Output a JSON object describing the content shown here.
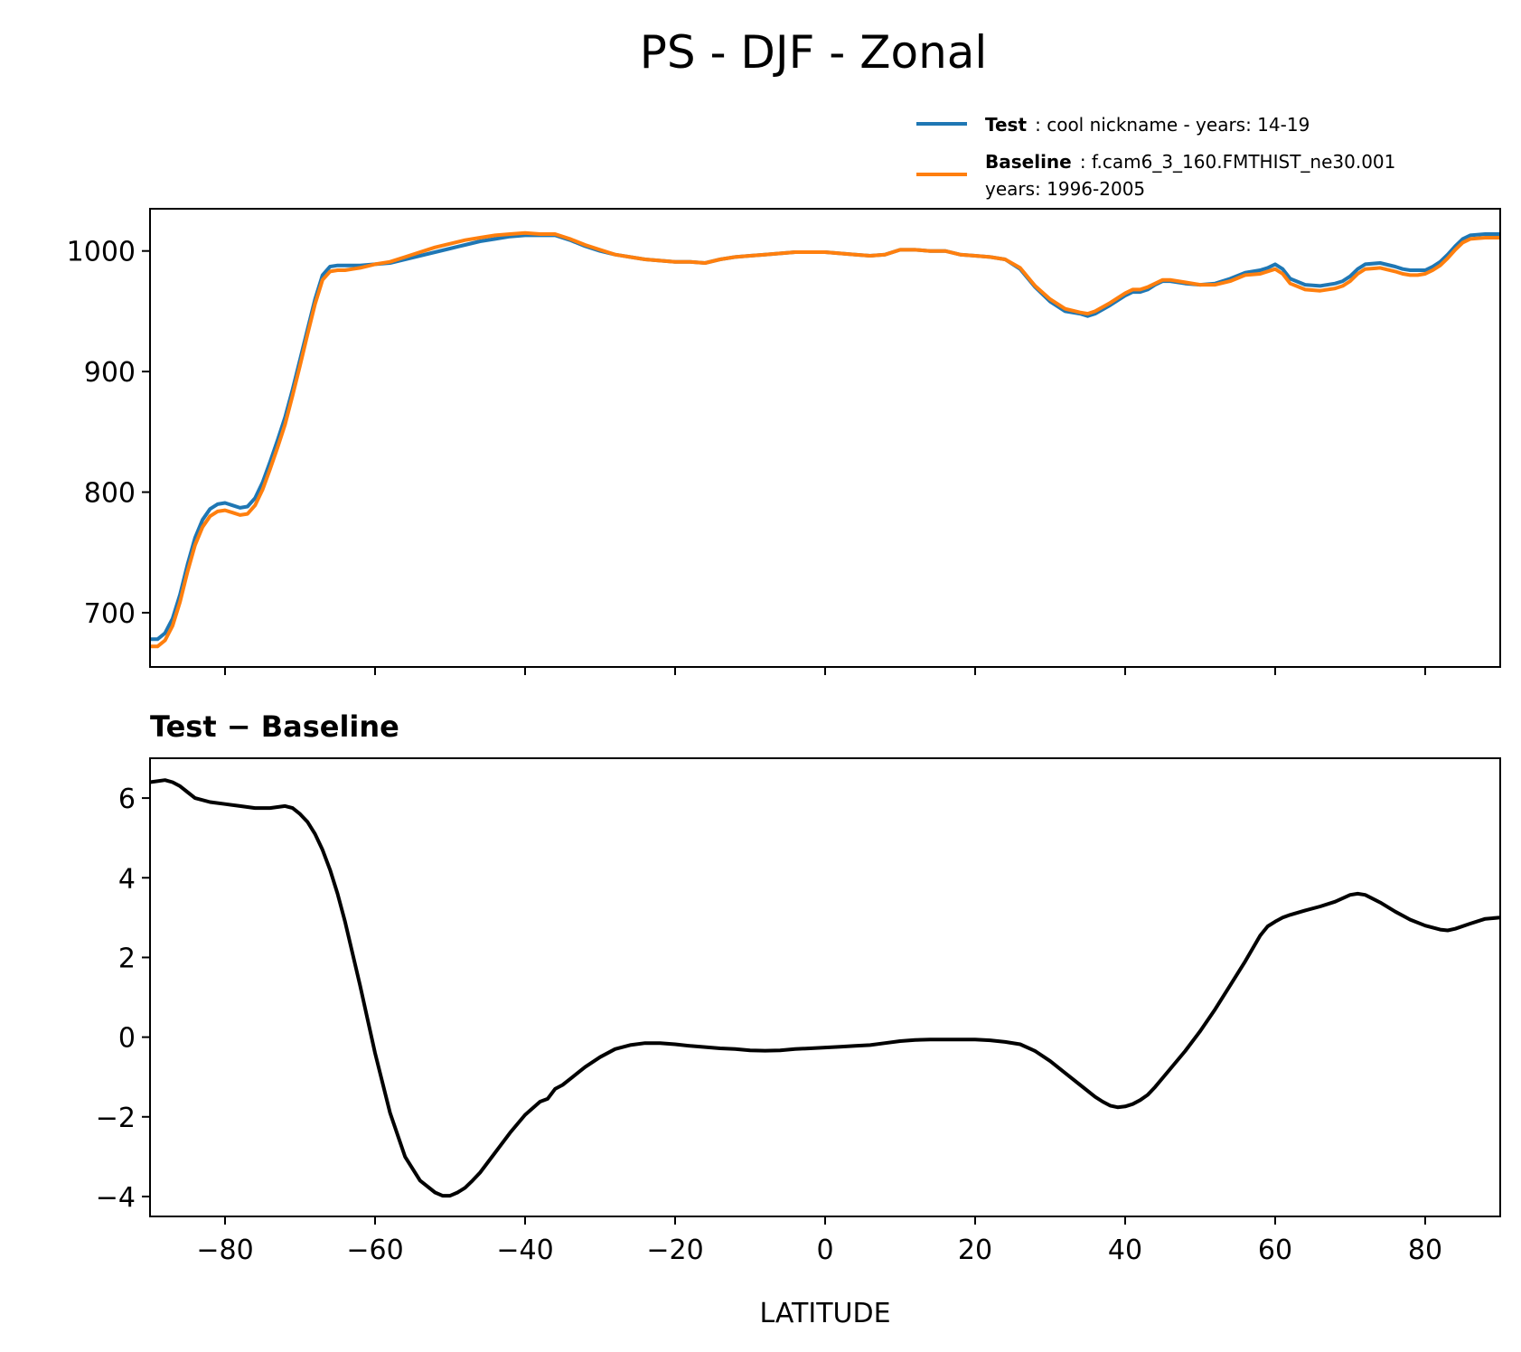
{
  "figure": {
    "title": "PS - DJF - Zonal"
  },
  "colors": {
    "test": "#1f77b4",
    "baseline": "#ff7f0e",
    "difference": "#000000",
    "axes": "#000000"
  },
  "legend": {
    "placement": "top-right",
    "entries": [
      {
        "key": "test",
        "name": "Test",
        "description": ": cool nickname - years: 14-19"
      },
      {
        "key": "baseline",
        "name": "Baseline",
        "description": ": f.cam6_3_160.FMTHIST_ne30.001",
        "description_line2": "years: 1996-2005"
      }
    ]
  },
  "chart_data": [
    {
      "type": "line",
      "panel": "top",
      "xlabel": "",
      "ylabel": "",
      "xlim": [
        -90,
        90
      ],
      "ylim": [
        655,
        1035
      ],
      "yticks": [
        700,
        800,
        900,
        1000
      ],
      "xticks": [
        -80,
        -60,
        -40,
        -20,
        0,
        20,
        40,
        60,
        80
      ],
      "show_xtick_labels": false,
      "series": [
        {
          "name": "Test",
          "color_key": "test",
          "x": [
            -90,
            -89,
            -88,
            -87,
            -86,
            -85,
            -84,
            -83,
            -82,
            -81,
            -80,
            -79,
            -78,
            -77,
            -76,
            -75,
            -74,
            -73,
            -72,
            -71,
            -70,
            -69,
            -68,
            -67,
            -66,
            -65,
            -64,
            -63,
            -62,
            -60,
            -58,
            -56,
            -54,
            -52,
            -50,
            -48,
            -46,
            -44,
            -42,
            -40,
            -38,
            -36,
            -34,
            -32,
            -30,
            -28,
            -26,
            -24,
            -22,
            -20,
            -18,
            -16,
            -14,
            -12,
            -10,
            -8,
            -6,
            -4,
            -2,
            0,
            2,
            4,
            6,
            8,
            10,
            12,
            14,
            16,
            18,
            20,
            22,
            24,
            26,
            28,
            30,
            32,
            34,
            35,
            36,
            38,
            40,
            41,
            42,
            43,
            44,
            45,
            46,
            48,
            50,
            52,
            54,
            56,
            58,
            59,
            60,
            61,
            62,
            64,
            66,
            68,
            69,
            70,
            71,
            72,
            74,
            76,
            77,
            78,
            79,
            80,
            81,
            82,
            83,
            84,
            85,
            86,
            88,
            90
          ],
          "y": [
            678,
            678,
            683,
            695,
            715,
            740,
            762,
            777,
            786,
            790,
            791,
            789,
            787,
            788,
            795,
            808,
            825,
            843,
            862,
            885,
            910,
            935,
            960,
            980,
            987,
            988,
            988,
            988,
            988,
            989,
            990,
            993,
            996,
            999,
            1002,
            1005,
            1008,
            1010,
            1012,
            1013,
            1013,
            1013,
            1009,
            1004,
            1000,
            997,
            995,
            993,
            992,
            991,
            991,
            990,
            993,
            995,
            996,
            997,
            998,
            999,
            999,
            999,
            998,
            997,
            996,
            997,
            1001,
            1001,
            1000,
            1000,
            997,
            996,
            995,
            993,
            985,
            970,
            958,
            950,
            948,
            946,
            948,
            955,
            963,
            966,
            966,
            968,
            972,
            975,
            975,
            973,
            972,
            973,
            977,
            982,
            984,
            986,
            989,
            985,
            977,
            972,
            971,
            973,
            975,
            979,
            985,
            989,
            990,
            987,
            985,
            984,
            984,
            984,
            987,
            991,
            997,
            1004,
            1010,
            1013,
            1014,
            1014
          ]
        },
        {
          "name": "Baseline",
          "color_key": "baseline",
          "x": [
            -90,
            -89,
            -88,
            -87,
            -86,
            -85,
            -84,
            -83,
            -82,
            -81,
            -80,
            -79,
            -78,
            -77,
            -76,
            -75,
            -74,
            -73,
            -72,
            -71,
            -70,
            -69,
            -68,
            -67,
            -66,
            -65,
            -64,
            -63,
            -62,
            -60,
            -58,
            -56,
            -54,
            -52,
            -50,
            -48,
            -46,
            -44,
            -42,
            -40,
            -38,
            -36,
            -34,
            -32,
            -30,
            -28,
            -26,
            -24,
            -22,
            -20,
            -18,
            -16,
            -14,
            -12,
            -10,
            -8,
            -6,
            -4,
            -2,
            0,
            2,
            4,
            6,
            8,
            10,
            12,
            14,
            16,
            18,
            20,
            22,
            24,
            26,
            28,
            30,
            32,
            34,
            35,
            36,
            38,
            40,
            41,
            42,
            43,
            44,
            45,
            46,
            48,
            50,
            52,
            54,
            56,
            58,
            59,
            60,
            61,
            62,
            64,
            66,
            68,
            69,
            70,
            71,
            72,
            74,
            76,
            77,
            78,
            79,
            80,
            81,
            82,
            83,
            84,
            85,
            86,
            88,
            90
          ],
          "y": [
            672,
            672,
            677,
            689,
            709,
            734,
            756,
            771,
            780,
            784,
            785,
            783,
            781,
            782,
            789,
            802,
            819,
            837,
            856,
            880,
            905,
            931,
            956,
            976,
            983,
            984,
            984,
            985,
            986,
            989,
            991,
            995,
            999,
            1003,
            1006,
            1009,
            1011,
            1013,
            1014,
            1015,
            1014,
            1014,
            1010,
            1005,
            1001,
            997,
            995,
            993,
            992,
            991,
            991,
            990,
            993,
            995,
            996,
            997,
            998,
            999,
            999,
            999,
            998,
            997,
            996,
            997,
            1001,
            1001,
            1000,
            1000,
            997,
            996,
            995,
            993,
            986,
            971,
            960,
            952,
            949,
            948,
            950,
            957,
            965,
            968,
            968,
            970,
            973,
            976,
            976,
            974,
            972,
            972,
            975,
            980,
            981,
            983,
            985,
            981,
            973,
            968,
            967,
            969,
            971,
            975,
            981,
            985,
            986,
            983,
            981,
            980,
            980,
            981,
            984,
            988,
            994,
            1001,
            1007,
            1010,
            1011,
            1011
          ]
        }
      ]
    },
    {
      "type": "line",
      "panel": "bottom",
      "subtitle": "Test − Baseline",
      "xlabel": "LATITUDE",
      "ylabel": "",
      "xlim": [
        -90,
        90
      ],
      "ylim": [
        -4.5,
        7.0
      ],
      "yticks": [
        -4,
        -2,
        0,
        2,
        4,
        6
      ],
      "xticks": [
        -80,
        -60,
        -40,
        -20,
        0,
        20,
        40,
        60,
        80
      ],
      "xtick_labels": [
        "−80",
        "−60",
        "−40",
        "−20",
        "0",
        "20",
        "40",
        "60",
        "80"
      ],
      "ytick_labels": [
        "−4",
        "−2",
        "0",
        "2",
        "4",
        "6"
      ],
      "series": [
        {
          "name": "Test − Baseline",
          "color_key": "difference",
          "x": [
            -90,
            -88,
            -87,
            -86,
            -85,
            -84,
            -82,
            -80,
            -78,
            -76,
            -74,
            -72,
            -71,
            -70,
            -69,
            -68,
            -67,
            -66,
            -65,
            -64,
            -62,
            -60,
            -58,
            -56,
            -54,
            -52,
            -51,
            -50,
            -49,
            -48,
            -47,
            -46,
            -44,
            -42,
            -40,
            -38,
            -37,
            -36,
            -35,
            -34,
            -32,
            -30,
            -28,
            -26,
            -24,
            -22,
            -20,
            -18,
            -16,
            -14,
            -12,
            -10,
            -8,
            -6,
            -4,
            -2,
            0,
            2,
            4,
            6,
            8,
            10,
            12,
            14,
            16,
            18,
            20,
            22,
            24,
            26,
            28,
            30,
            32,
            34,
            36,
            37,
            38,
            39,
            40,
            41,
            42,
            43,
            44,
            46,
            48,
            50,
            52,
            54,
            56,
            58,
            59,
            60,
            61,
            62,
            64,
            66,
            68,
            70,
            71,
            72,
            74,
            76,
            78,
            80,
            82,
            83,
            84,
            86,
            88,
            90
          ],
          "y": [
            6.4,
            6.45,
            6.4,
            6.3,
            6.15,
            6.0,
            5.9,
            5.85,
            5.8,
            5.75,
            5.75,
            5.8,
            5.75,
            5.6,
            5.4,
            5.1,
            4.7,
            4.2,
            3.6,
            2.9,
            1.3,
            -0.4,
            -1.9,
            -3.0,
            -3.6,
            -3.9,
            -3.98,
            -3.98,
            -3.9,
            -3.78,
            -3.6,
            -3.4,
            -2.9,
            -2.4,
            -1.95,
            -1.62,
            -1.55,
            -1.3,
            -1.2,
            -1.05,
            -0.75,
            -0.5,
            -0.3,
            -0.2,
            -0.15,
            -0.15,
            -0.18,
            -0.22,
            -0.25,
            -0.28,
            -0.3,
            -0.33,
            -0.34,
            -0.33,
            -0.3,
            -0.28,
            -0.26,
            -0.24,
            -0.22,
            -0.2,
            -0.15,
            -0.1,
            -0.07,
            -0.06,
            -0.06,
            -0.06,
            -0.06,
            -0.08,
            -0.12,
            -0.18,
            -0.35,
            -0.6,
            -0.9,
            -1.2,
            -1.5,
            -1.62,
            -1.72,
            -1.76,
            -1.74,
            -1.68,
            -1.58,
            -1.45,
            -1.25,
            -0.8,
            -0.35,
            0.15,
            0.7,
            1.3,
            1.9,
            2.55,
            2.78,
            2.9,
            3.0,
            3.07,
            3.18,
            3.28,
            3.4,
            3.57,
            3.6,
            3.57,
            3.38,
            3.15,
            2.95,
            2.8,
            2.7,
            2.68,
            2.72,
            2.85,
            2.97,
            3.0
          ]
        }
      ]
    }
  ]
}
